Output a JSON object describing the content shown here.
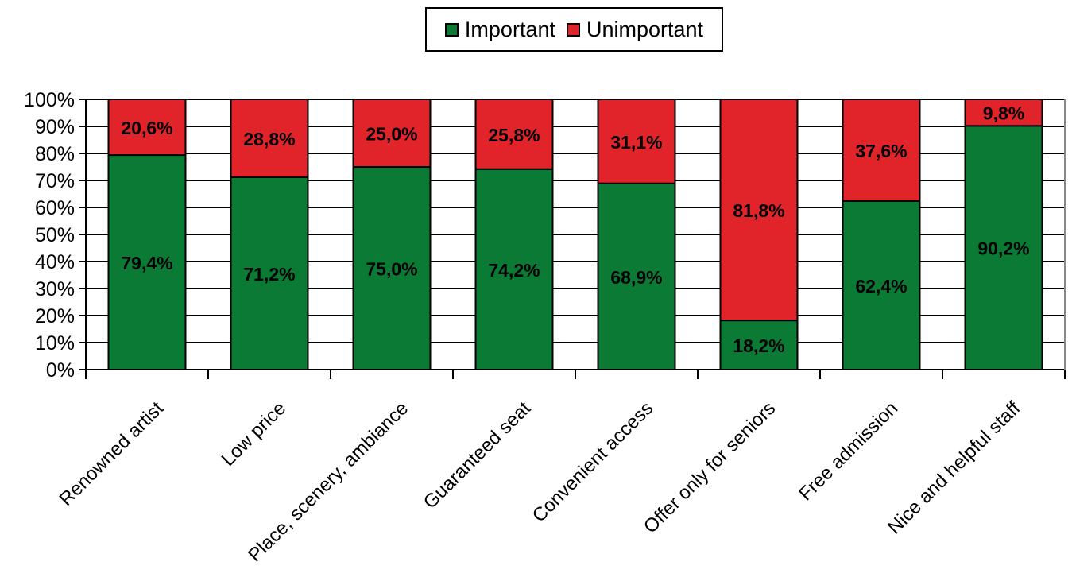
{
  "chart_data": {
    "type": "bar",
    "stacked": true,
    "categories": [
      "Renowned artist",
      "Low price",
      "Place, scenery, ambiance",
      "Guaranteed seat",
      "Convenient access",
      "Offer only for seniors",
      "Free admission",
      "Nice and helpful staff"
    ],
    "series": [
      {
        "name": "Important",
        "color": "#0a7a35",
        "values": [
          79.4,
          71.2,
          75.0,
          74.2,
          68.9,
          18.2,
          62.4,
          90.2
        ],
        "labels": [
          "79,4%",
          "71,2%",
          "75,0%",
          "74,2%",
          "68,9%",
          "18,2%",
          "62,4%",
          "90,2%"
        ]
      },
      {
        "name": "Unimportant",
        "color": "#e0242a",
        "values": [
          20.6,
          28.8,
          25.0,
          25.8,
          31.1,
          81.8,
          37.6,
          9.8
        ],
        "labels": [
          "20,6%",
          "28,8%",
          "25,0%",
          "25,8%",
          "31,1%",
          "81,8%",
          "37,6%",
          "9,8%"
        ]
      }
    ],
    "y_ticks": [
      "0%",
      "10%",
      "20%",
      "30%",
      "40%",
      "50%",
      "60%",
      "70%",
      "80%",
      "90%",
      "100%"
    ],
    "ylim": [
      0,
      100
    ],
    "grid": true,
    "legend_position": "top-center"
  }
}
